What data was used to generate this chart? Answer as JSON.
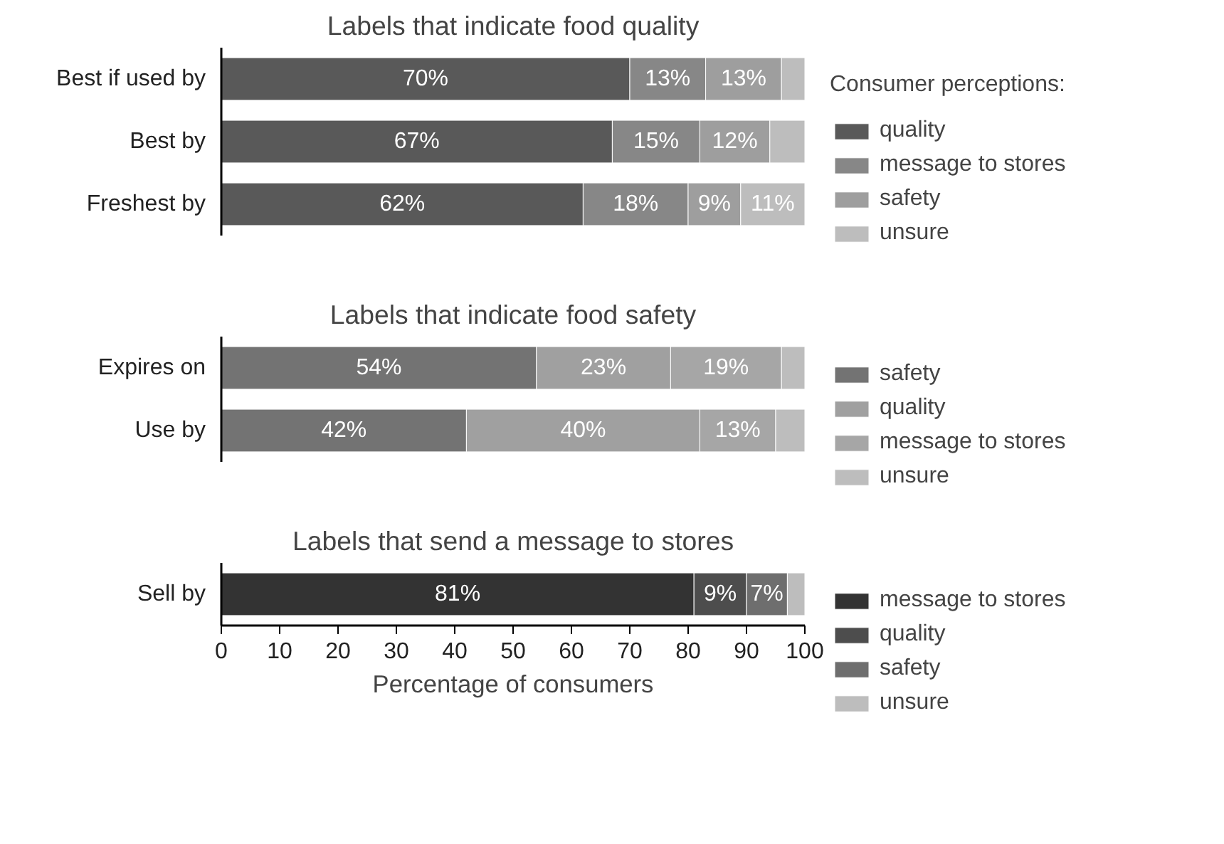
{
  "chart_data": [
    {
      "type": "bar",
      "orientation": "horizontal",
      "stacked": true,
      "title": "Labels that indicate food quality",
      "legend_title": "Consumer perceptions:",
      "legend": "right",
      "categories": [
        "Best if used by",
        "Best by",
        "Freshest by"
      ],
      "xlim": [
        0,
        100
      ],
      "tick_labels": "y",
      "grid": false,
      "series": [
        {
          "name": "quality",
          "color": "#595959",
          "values": [
            70,
            67,
            62
          ],
          "value_labels": [
            "70%",
            "67%",
            "62%"
          ]
        },
        {
          "name": "message to stores",
          "color": "#878787",
          "values": [
            13,
            15,
            18
          ],
          "value_labels": [
            "13%",
            "15%",
            "18%"
          ]
        },
        {
          "name": "safety",
          "color": "#9e9e9e",
          "values": [
            13,
            12,
            9
          ],
          "value_labels": [
            "13%",
            "12%",
            "9%"
          ]
        },
        {
          "name": "unsure",
          "color": "#bdbdbd",
          "values": [
            4,
            6,
            11
          ],
          "value_labels": [
            null,
            null,
            "11%"
          ]
        }
      ]
    },
    {
      "type": "bar",
      "orientation": "horizontal",
      "stacked": true,
      "title": "Labels that indicate food safety",
      "legend": "right",
      "categories": [
        "Expires on",
        "Use by"
      ],
      "xlim": [
        0,
        100
      ],
      "tick_labels": "y",
      "grid": false,
      "series": [
        {
          "name": "safety",
          "color": "#737373",
          "values": [
            54,
            42
          ],
          "value_labels": [
            "54%",
            "42%"
          ]
        },
        {
          "name": "quality",
          "color": "#a0a0a0",
          "values": [
            23,
            40
          ],
          "value_labels": [
            "23%",
            "40%"
          ]
        },
        {
          "name": "message to stores",
          "color": "#a6a6a6",
          "values": [
            19,
            13
          ],
          "value_labels": [
            "19%",
            "13%"
          ]
        },
        {
          "name": "unsure",
          "color": "#bdbdbd",
          "values": [
            4,
            5
          ],
          "value_labels": [
            null,
            null
          ]
        }
      ]
    },
    {
      "type": "bar",
      "orientation": "horizontal",
      "stacked": true,
      "title": "Labels that send a message to stores",
      "legend": "right",
      "categories": [
        "Sell by"
      ],
      "xlim": [
        0,
        100
      ],
      "xticks": [
        0,
        10,
        20,
        30,
        40,
        50,
        60,
        70,
        80,
        90,
        100
      ],
      "xlabel": "Percentage of consumers",
      "grid": false,
      "series": [
        {
          "name": "message to stores",
          "color": "#333333",
          "values": [
            81
          ],
          "value_labels": [
            "81%"
          ]
        },
        {
          "name": "quality",
          "color": "#4d4d4d",
          "values": [
            9
          ],
          "value_labels": [
            "9%"
          ]
        },
        {
          "name": "safety",
          "color": "#6e6e6e",
          "values": [
            7
          ],
          "value_labels": [
            "7%"
          ]
        },
        {
          "name": "unsure",
          "color": "#bdbdbd",
          "values": [
            3
          ],
          "value_labels": [
            null
          ]
        }
      ]
    }
  ]
}
